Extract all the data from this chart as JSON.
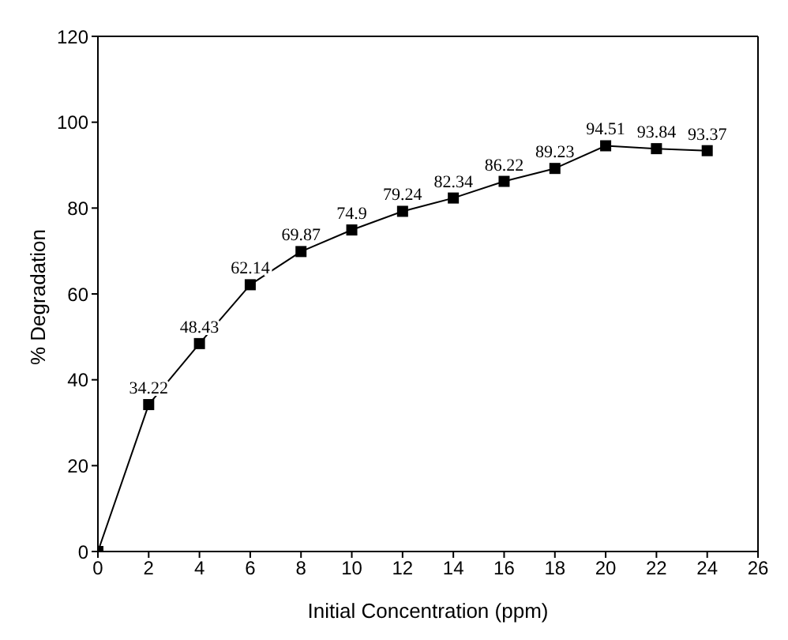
{
  "chart_data": {
    "type": "line",
    "xlabel": "Initial Concentration (ppm)",
    "ylabel": "% Degradation",
    "x": [
      0,
      2,
      4,
      6,
      8,
      10,
      12,
      14,
      16,
      18,
      20,
      22,
      24
    ],
    "series": [
      {
        "color": "#000000",
        "values": [
          0,
          34.22,
          48.43,
          62.14,
          69.87,
          74.9,
          79.24,
          82.34,
          86.22,
          89.23,
          94.51,
          93.84,
          93.37
        ],
        "value_labels": [
          null,
          "34.22",
          "48.43",
          "62.14",
          "69.87",
          "74.9",
          "79.24",
          "82.34",
          "86.22",
          "89.23",
          "94.51",
          "93.84",
          "93.37"
        ]
      }
    ],
    "xlim": [
      0,
      26
    ],
    "xticks": [
      0,
      2,
      4,
      6,
      8,
      10,
      12,
      14,
      16,
      18,
      20,
      22,
      24,
      26
    ],
    "ylim": [
      0,
      120
    ],
    "yticks": [
      0,
      20,
      40,
      60,
      80,
      100,
      120
    ],
    "grid": false,
    "legend": false,
    "marker": "square",
    "line_style": "solid"
  }
}
